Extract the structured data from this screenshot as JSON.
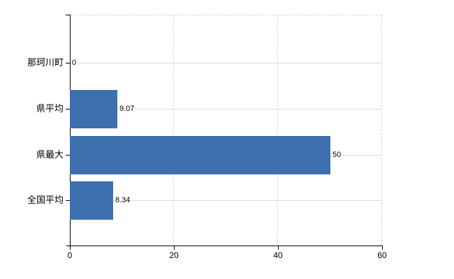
{
  "chart_data": {
    "type": "bar",
    "orientation": "horizontal",
    "title": "",
    "categories": [
      "那珂川町",
      "県平均",
      "県最大",
      "全国平均"
    ],
    "values": [
      0,
      9.07,
      50,
      8.34
    ],
    "value_labels": [
      "0",
      "9.07",
      "50",
      "8.34"
    ],
    "xlim": [
      0,
      60
    ],
    "x_ticks": [
      0,
      20,
      40,
      60
    ],
    "x_tick_labels": [
      "0",
      "20",
      "40",
      "60"
    ],
    "grid": true,
    "legend": "none",
    "colors": {
      "bar": "#3e6fae",
      "grid_horizontal": "#d9ddd9",
      "grid_vertical": "#d6d6d6",
      "axis": "#000000",
      "text": "#000000",
      "background": "#ffffff"
    }
  }
}
